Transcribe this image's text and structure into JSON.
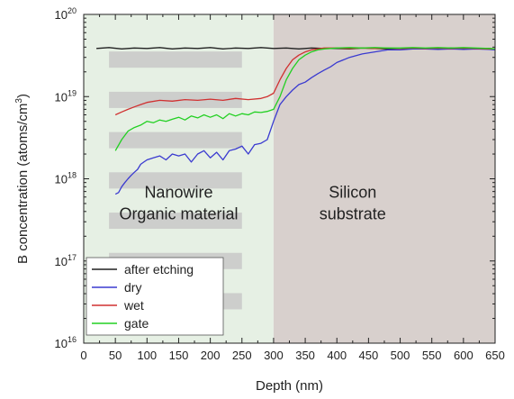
{
  "chart_data": {
    "type": "line",
    "xlabel": "Depth (nm)",
    "ylabel_parts": {
      "main": "B concentration (atoms/cm",
      "sup": "3",
      "close": ")"
    },
    "xlim": [
      0,
      650
    ],
    "ylim_log10": [
      16,
      20
    ],
    "y_scale": "log",
    "x_ticks": [
      0,
      25,
      50,
      75,
      100,
      125,
      150,
      175,
      200,
      225,
      250,
      275,
      300,
      325,
      350,
      375,
      400,
      425,
      450,
      475,
      500,
      525,
      550,
      575,
      600,
      625,
      650
    ],
    "x_tick_labels": [
      "0",
      "50",
      "100",
      "150",
      "200",
      "250",
      "300",
      "350",
      "400",
      "450",
      "500",
      "550",
      "600",
      "650"
    ],
    "y_tick_labels": [
      {
        "exp": 16,
        "base": "10",
        "sup": "16"
      },
      {
        "exp": 17,
        "base": "10",
        "sup": "17"
      },
      {
        "exp": 18,
        "base": "10",
        "sup": "18"
      },
      {
        "exp": 19,
        "base": "10",
        "sup": "19"
      },
      {
        "exp": 20,
        "base": "10",
        "sup": "20"
      }
    ],
    "regions": [
      {
        "x0": 0,
        "x1": 300,
        "color": "#e6f0e4"
      },
      {
        "x0": 300,
        "x1": 650,
        "color": "#d8d0cd"
      }
    ],
    "region_labels": [
      {
        "lines": [
          "Nanowire",
          "Organic material"
        ],
        "x": 150,
        "log_y": 17.77
      },
      {
        "lines": [
          "Silicon",
          "substrate"
        ],
        "x": 425,
        "log_y": 17.77
      }
    ],
    "stripes": [
      {
        "x0": 40,
        "x1": 250,
        "log_y": 19.45
      },
      {
        "x0": 40,
        "x1": 250,
        "log_y": 18.96
      },
      {
        "x0": 40,
        "x1": 250,
        "log_y": 18.47
      },
      {
        "x0": 40,
        "x1": 250,
        "log_y": 17.98
      },
      {
        "x0": 40,
        "x1": 250,
        "log_y": 17.49
      },
      {
        "x0": 40,
        "x1": 250,
        "log_y": 17.0
      },
      {
        "x0": 40,
        "x1": 250,
        "log_y": 16.51
      }
    ],
    "legend_position": "bottom-left",
    "series": [
      {
        "name": "after etching",
        "color": "#202020",
        "x": [
          20,
          40,
          60,
          80,
          100,
          120,
          140,
          160,
          180,
          200,
          220,
          240,
          260,
          280,
          300,
          320,
          340,
          360,
          380,
          400,
          420,
          440,
          460,
          480,
          500,
          520,
          540,
          560,
          580,
          600,
          620,
          640,
          650
        ],
        "values": [
          3.85e+19,
          3.95e+19,
          3.8e+19,
          3.9e+19,
          3.85e+19,
          3.95e+19,
          3.8e+19,
          3.9e+19,
          3.85e+19,
          3.95e+19,
          3.8e+19,
          3.9e+19,
          3.85e+19,
          3.95e+19,
          3.85e+19,
          3.9e+19,
          3.8e+19,
          3.9e+19,
          3.85e+19,
          3.85e+19,
          3.8e+19,
          3.9e+19,
          3.85e+19,
          3.8e+19,
          3.85e+19,
          3.8e+19,
          3.85e+19,
          3.8e+19,
          3.9e+19,
          3.85e+19,
          3.8e+19,
          3.85e+19,
          3.8e+19
        ]
      },
      {
        "name": "dry",
        "color": "#3a3ad0",
        "x": [
          50,
          55,
          60,
          65,
          70,
          75,
          80,
          85,
          90,
          95,
          100,
          110,
          120,
          130,
          140,
          150,
          160,
          170,
          180,
          190,
          200,
          210,
          220,
          230,
          240,
          250,
          260,
          270,
          280,
          290,
          300,
          310,
          320,
          330,
          340,
          350,
          360,
          370,
          380,
          390,
          400,
          420,
          440,
          460,
          480,
          500,
          520,
          540,
          560,
          580,
          600,
          620,
          640,
          650
        ],
        "values": [
          6.5e+17,
          6.8e+17,
          8e+17,
          9e+17,
          1e+18,
          1.1e+18,
          1.2e+18,
          1.3e+18,
          1.5e+18,
          1.6e+18,
          1.7e+18,
          1.8e+18,
          1.9e+18,
          1.7e+18,
          2e+18,
          1.9e+18,
          2e+18,
          1.6e+18,
          2e+18,
          2.2e+18,
          1.8e+18,
          2.1e+18,
          1.7e+18,
          2.2e+18,
          2.3e+18,
          2.5e+18,
          2e+18,
          2.6e+18,
          2.7e+18,
          3e+18,
          5e+18,
          8e+18,
          1e+19,
          1.2e+19,
          1.4e+19,
          1.5e+19,
          1.7e+19,
          1.9e+19,
          2.1e+19,
          2.3e+19,
          2.6e+19,
          3e+19,
          3.3e+19,
          3.5e+19,
          3.7e+19,
          3.7e+19,
          3.8e+19,
          3.8e+19,
          3.75e+19,
          3.8e+19,
          3.75e+19,
          3.8e+19,
          3.75e+19,
          3.7e+19
        ]
      },
      {
        "name": "wet",
        "color": "#d03030",
        "x": [
          50,
          60,
          70,
          80,
          90,
          100,
          120,
          140,
          160,
          180,
          200,
          220,
          240,
          260,
          280,
          290,
          300,
          310,
          320,
          330,
          340,
          350,
          360,
          370,
          380,
          400,
          420,
          440,
          460,
          480,
          500,
          520,
          540,
          560,
          580,
          600,
          620,
          640,
          650
        ],
        "values": [
          6e+18,
          6.5e+18,
          7e+18,
          7.5e+18,
          8e+18,
          8.5e+18,
          9e+18,
          8.8e+18,
          9.2e+18,
          9e+18,
          9.3e+18,
          9e+18,
          9.5e+18,
          9.2e+18,
          9.5e+18,
          1e+19,
          1.1e+19,
          1.6e+19,
          2.2e+19,
          2.8e+19,
          3.2e+19,
          3.5e+19,
          3.7e+19,
          3.8e+19,
          3.9e+19,
          3.9e+19,
          3.85e+19,
          3.9e+19,
          3.85e+19,
          3.9e+19,
          3.85e+19,
          3.9e+19,
          3.85e+19,
          3.9e+19,
          3.85e+19,
          3.9e+19,
          3.85e+19,
          3.8e+19,
          3.8e+19
        ]
      },
      {
        "name": "gate",
        "color": "#22d022",
        "x": [
          50,
          60,
          70,
          80,
          90,
          100,
          110,
          120,
          130,
          140,
          150,
          160,
          170,
          180,
          190,
          200,
          210,
          220,
          230,
          240,
          250,
          260,
          270,
          280,
          290,
          300,
          310,
          320,
          330,
          340,
          350,
          360,
          370,
          380,
          400,
          420,
          440,
          460,
          480,
          500,
          520,
          540,
          560,
          580,
          600,
          620,
          640,
          650
        ],
        "values": [
          2.2e+18,
          3e+18,
          3.8e+18,
          4.2e+18,
          4.5e+18,
          5e+18,
          4.8e+18,
          5.2e+18,
          5e+18,
          5.3e+18,
          5.6e+18,
          5.2e+18,
          5.8e+18,
          5.5e+18,
          6e+18,
          5.6e+18,
          6e+18,
          5.4e+18,
          6.2e+18,
          5.8e+18,
          6.2e+18,
          6e+18,
          6.5e+18,
          6.4e+18,
          6.6e+18,
          7e+18,
          1e+19,
          1.6e+19,
          2.2e+19,
          2.8e+19,
          3.2e+19,
          3.5e+19,
          3.7e+19,
          3.8e+19,
          3.9e+19,
          3.95e+19,
          3.9e+19,
          3.95e+19,
          3.9e+19,
          3.9e+19,
          3.95e+19,
          3.9e+19,
          3.95e+19,
          3.9e+19,
          3.95e+19,
          3.9e+19,
          3.85e+19,
          3.8e+19
        ]
      }
    ]
  }
}
